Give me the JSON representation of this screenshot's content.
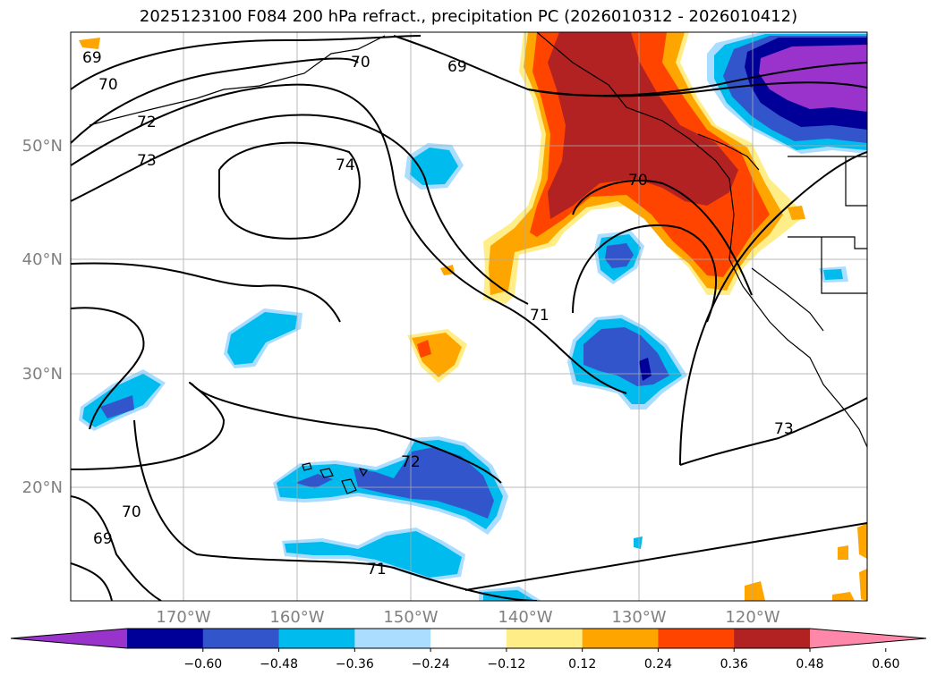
{
  "title": "2025123100 F084 200 hPa refract., precipitation PC (2026010312 - 2026010412)",
  "map": {
    "lat_labels": [
      "50°N",
      "40°N",
      "30°N",
      "20°N"
    ],
    "lon_labels": [
      "170°W",
      "160°W",
      "150°W",
      "140°W",
      "130°W",
      "120°W"
    ],
    "contour_labels": [
      "69",
      "70",
      "72",
      "73",
      "74",
      "70",
      "69",
      "70",
      "71",
      "72",
      "73",
      "69",
      "70",
      "71"
    ]
  },
  "colorbar": {
    "ticks": [
      "−0.60",
      "−0.48",
      "−0.36",
      "−0.24",
      "−0.12",
      "0.12",
      "0.24",
      "0.36",
      "0.48",
      "0.60"
    ],
    "colors": [
      "#9933cc",
      "#000099",
      "#3355cc",
      "#00bbee",
      "#aaddff",
      "#ffffff",
      "#ffee88",
      "#ffa500",
      "#ff4400",
      "#b22222",
      "#ff88aa"
    ]
  }
}
